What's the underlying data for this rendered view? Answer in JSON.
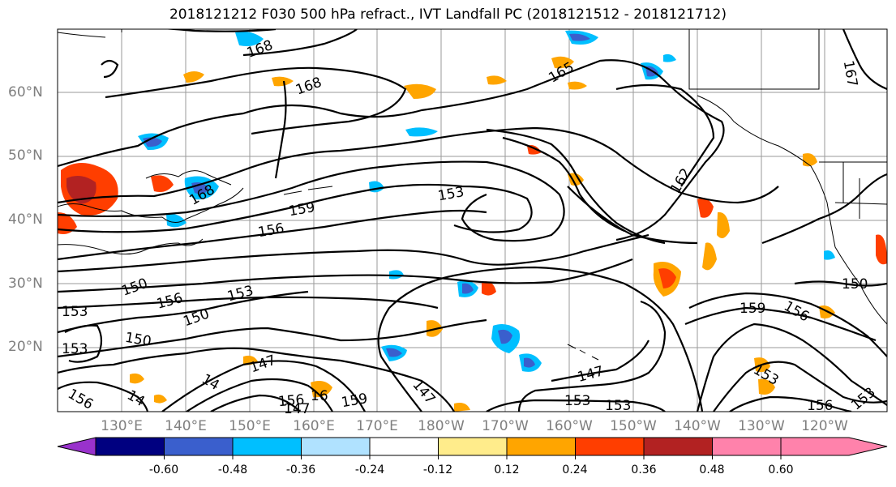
{
  "title": "2018121212 F030 500 hPa refract., IVT Landfall PC (2018121512 - 2018121712)",
  "lat_labels": [
    "60°N",
    "50°N",
    "40°N",
    "30°N",
    "20°N"
  ],
  "lon_labels": [
    "130°E",
    "140°E",
    "150°E",
    "160°E",
    "170°E",
    "180°W",
    "170°W",
    "160°W",
    "150°W",
    "140°W",
    "130°W",
    "120°W"
  ],
  "contour_labels": [
    "168",
    "168",
    "165",
    "167",
    "168",
    "162",
    "153",
    "159",
    "156",
    "150",
    "153",
    "156",
    "150",
    "153",
    "150",
    "153",
    "147",
    "156",
    "16",
    "159",
    "147",
    "147",
    "153",
    "159",
    "156",
    "150",
    "153",
    "156",
    "153",
    "153",
    "14",
    "14",
    "156",
    "147"
  ],
  "colorbar": {
    "colors": [
      "#9932cc",
      "#000080",
      "#3a5fcd",
      "#00bfff",
      "#b0e2ff",
      "#ffffff",
      "#ffec8b",
      "#ffa500",
      "#ff3e00",
      "#b22222",
      "#ff82ab"
    ],
    "tick_labels": [
      "-0.60",
      "-0.48",
      "-0.36",
      "-0.24",
      "-0.12",
      "0.12",
      "0.24",
      "0.36",
      "0.48",
      "0.60"
    ]
  }
}
